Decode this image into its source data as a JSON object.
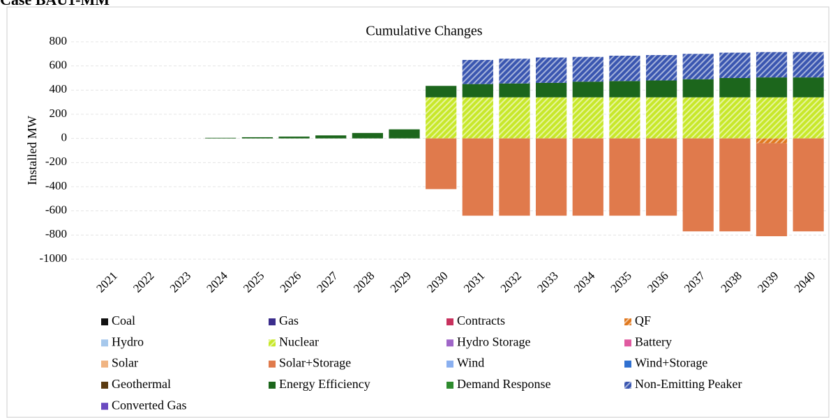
{
  "page_title": "Case BAU1-MM",
  "chart_data": {
    "type": "stacked_bar",
    "title": "Cumulative Changes",
    "y_label": "Installed MW",
    "categories": [
      "2021",
      "2022",
      "2023",
      "2024",
      "2025",
      "2026",
      "2027",
      "2028",
      "2029",
      "2030",
      "2031",
      "2032",
      "2033",
      "2034",
      "2035",
      "2036",
      "2037",
      "2038",
      "2039",
      "2040"
    ],
    "ylim": [
      -1000,
      800
    ],
    "yticks": [
      -1000,
      -800,
      -600,
      -400,
      -200,
      0,
      200,
      400,
      600,
      800
    ],
    "grid": true,
    "series": [
      {
        "name": "Coal",
        "color": "#111111",
        "values": [
          0,
          0,
          0,
          0,
          0,
          0,
          0,
          0,
          0,
          0,
          0,
          0,
          0,
          0,
          0,
          0,
          0,
          0,
          0,
          0
        ]
      },
      {
        "name": "Gas",
        "color": "#3b2d8c",
        "values": [
          0,
          0,
          0,
          0,
          0,
          0,
          0,
          0,
          0,
          0,
          0,
          0,
          0,
          0,
          0,
          0,
          0,
          0,
          0,
          0
        ]
      },
      {
        "name": "Contracts",
        "color": "#c8325e",
        "values": [
          0,
          0,
          0,
          0,
          0,
          0,
          0,
          0,
          0,
          0,
          0,
          0,
          0,
          0,
          0,
          0,
          0,
          0,
          0,
          0
        ]
      },
      {
        "name": "QF",
        "color": "#e0781e",
        "hatched": true,
        "values": [
          0,
          0,
          0,
          0,
          0,
          0,
          0,
          0,
          0,
          0,
          0,
          0,
          0,
          0,
          0,
          0,
          0,
          0,
          -40,
          0
        ]
      },
      {
        "name": "Hydro",
        "color": "#a6c8ec",
        "values": [
          0,
          0,
          0,
          0,
          0,
          0,
          0,
          0,
          0,
          0,
          0,
          0,
          0,
          0,
          0,
          0,
          0,
          0,
          0,
          0
        ]
      },
      {
        "name": "Nuclear",
        "color": "#c8e82a",
        "hatched": true,
        "values": [
          0,
          0,
          0,
          0,
          0,
          0,
          0,
          0,
          0,
          340,
          340,
          340,
          340,
          340,
          340,
          340,
          340,
          340,
          340,
          340
        ]
      },
      {
        "name": "Hydro Storage",
        "color": "#9f66c8",
        "values": [
          0,
          0,
          0,
          0,
          0,
          0,
          0,
          0,
          0,
          0,
          0,
          0,
          0,
          0,
          0,
          0,
          0,
          0,
          0,
          0
        ]
      },
      {
        "name": "Battery",
        "color": "#e05aa0",
        "values": [
          0,
          0,
          0,
          0,
          0,
          0,
          0,
          0,
          0,
          0,
          0,
          0,
          0,
          0,
          0,
          0,
          0,
          0,
          0,
          0
        ]
      },
      {
        "name": "Solar",
        "color": "#f0b482",
        "values": [
          0,
          0,
          0,
          0,
          0,
          0,
          0,
          0,
          0,
          0,
          0,
          0,
          0,
          0,
          0,
          0,
          0,
          0,
          0,
          0
        ]
      },
      {
        "name": "Solar+Storage",
        "color": "#e07a4c",
        "values": [
          0,
          0,
          0,
          0,
          0,
          0,
          0,
          0,
          0,
          -420,
          -640,
          -640,
          -640,
          -640,
          -640,
          -640,
          -770,
          -770,
          -770,
          -770
        ]
      },
      {
        "name": "Wind",
        "color": "#8ab0f0",
        "values": [
          0,
          0,
          0,
          0,
          0,
          0,
          0,
          0,
          0,
          0,
          0,
          0,
          0,
          0,
          0,
          0,
          0,
          0,
          0,
          0
        ]
      },
      {
        "name": "Wind+Storage",
        "color": "#3070d0",
        "values": [
          0,
          0,
          0,
          0,
          0,
          0,
          0,
          0,
          0,
          0,
          0,
          0,
          0,
          0,
          0,
          0,
          0,
          0,
          0,
          0
        ]
      },
      {
        "name": "Geothermal",
        "color": "#5a3a10",
        "values": [
          0,
          0,
          0,
          0,
          0,
          0,
          0,
          0,
          0,
          0,
          0,
          0,
          0,
          0,
          0,
          0,
          0,
          0,
          0,
          0
        ]
      },
      {
        "name": "Energy Efficiency",
        "color": "#1c661c",
        "values": [
          0,
          0,
          0,
          5,
          10,
          15,
          25,
          45,
          75,
          95,
          110,
          115,
          120,
          130,
          135,
          140,
          150,
          160,
          165,
          165
        ]
      },
      {
        "name": "Demand Response",
        "color": "#2e8b2e",
        "values": [
          0,
          0,
          0,
          0,
          0,
          0,
          0,
          0,
          0,
          0,
          0,
          0,
          0,
          0,
          0,
          0,
          0,
          0,
          0,
          0
        ]
      },
      {
        "name": "Non-Emitting Peaker",
        "color": "#3a56b0",
        "hatched": true,
        "values": [
          0,
          0,
          0,
          0,
          0,
          0,
          0,
          0,
          0,
          0,
          200,
          205,
          210,
          205,
          210,
          210,
          210,
          210,
          210,
          210
        ]
      },
      {
        "name": "Converted Gas",
        "color": "#6a4ac0",
        "values": [
          0,
          0,
          0,
          0,
          0,
          0,
          0,
          0,
          0,
          0,
          0,
          0,
          0,
          0,
          0,
          0,
          0,
          0,
          0,
          0
        ]
      }
    ]
  }
}
